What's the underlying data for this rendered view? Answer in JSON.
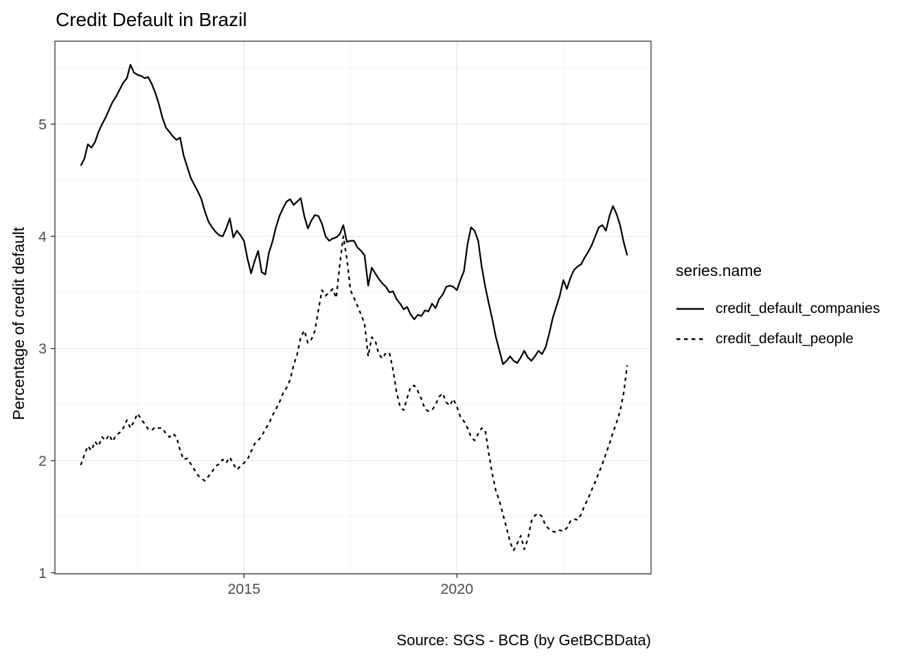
{
  "chart_data": {
    "type": "line",
    "title": "Credit Default in Brazil",
    "xlabel": "",
    "ylabel": "Percentage of credit default",
    "caption": "Source: SGS - BCB (by GetBCBData)",
    "legend_title": "series.name",
    "legend_position": "right",
    "grid": true,
    "x_unit": "decimal_year",
    "x_start": 2011.1667,
    "x_step": 0.0833333,
    "x_range": [
      2010.56,
      2024.56
    ],
    "y_range": [
      0.99,
      5.74
    ],
    "x_major_ticks": [
      {
        "value": 2015,
        "label": "2015"
      },
      {
        "value": 2020,
        "label": "2020"
      }
    ],
    "x_minor_ticks": [
      2012.5,
      2017.5,
      2022.5
    ],
    "y_major_ticks": [
      {
        "value": 1,
        "label": "1"
      },
      {
        "value": 2,
        "label": "2"
      },
      {
        "value": 3,
        "label": "3"
      },
      {
        "value": 4,
        "label": "4"
      },
      {
        "value": 5,
        "label": "5"
      }
    ],
    "y_minor_ticks": [
      1.5,
      2.5,
      3.5,
      4.5,
      5.5
    ],
    "colors": {
      "series_line": "#000000",
      "panel_border": "#333333",
      "tick_mark": "#333333",
      "tick_label": "#4d4d4d",
      "grid_major": "#e3e3e3",
      "grid_minor": "#f1f1f1",
      "background": "#ffffff"
    },
    "series": [
      {
        "name": "credit_default_companies",
        "linetype": "solid",
        "color": "#000000",
        "values": [
          4.63,
          4.69,
          4.82,
          4.79,
          4.84,
          4.93,
          5.0,
          5.06,
          5.13,
          5.2,
          5.25,
          5.31,
          5.37,
          5.41,
          5.53,
          5.46,
          5.44,
          5.43,
          5.41,
          5.42,
          5.36,
          5.28,
          5.18,
          5.06,
          4.97,
          4.93,
          4.89,
          4.86,
          4.88,
          4.72,
          4.62,
          4.52,
          4.46,
          4.4,
          4.33,
          4.22,
          4.13,
          4.08,
          4.04,
          4.01,
          4.0,
          4.07,
          4.16,
          3.99,
          4.05,
          4.01,
          3.96,
          3.8,
          3.67,
          3.78,
          3.87,
          3.68,
          3.66,
          3.85,
          3.95,
          4.08,
          4.18,
          4.25,
          4.31,
          4.33,
          4.28,
          4.31,
          4.34,
          4.18,
          4.07,
          4.14,
          4.19,
          4.18,
          4.11,
          4.0,
          3.96,
          3.98,
          3.99,
          4.02,
          4.1,
          3.95,
          3.96,
          3.96,
          3.9,
          3.87,
          3.83,
          3.56,
          3.72,
          3.67,
          3.62,
          3.58,
          3.55,
          3.5,
          3.51,
          3.44,
          3.4,
          3.35,
          3.37,
          3.3,
          3.26,
          3.3,
          3.29,
          3.34,
          3.33,
          3.4,
          3.36,
          3.44,
          3.48,
          3.55,
          3.56,
          3.55,
          3.52,
          3.61,
          3.69,
          3.93,
          4.08,
          4.05,
          3.96,
          3.73,
          3.55,
          3.4,
          3.26,
          3.1,
          2.98,
          2.86,
          2.89,
          2.93,
          2.89,
          2.87,
          2.92,
          2.98,
          2.92,
          2.89,
          2.93,
          2.98,
          2.95,
          3.01,
          3.13,
          3.27,
          3.37,
          3.47,
          3.61,
          3.53,
          3.63,
          3.7,
          3.73,
          3.75,
          3.81,
          3.86,
          3.92,
          4.0,
          4.08,
          4.1,
          4.05,
          4.18,
          4.27,
          4.2,
          4.1,
          3.95,
          3.83
        ]
      },
      {
        "name": "credit_default_people",
        "linetype": "dashed",
        "color": "#000000",
        "values": [
          1.96,
          2.05,
          2.13,
          2.09,
          2.17,
          2.13,
          2.21,
          2.18,
          2.23,
          2.17,
          2.23,
          2.25,
          2.29,
          2.36,
          2.29,
          2.35,
          2.42,
          2.37,
          2.33,
          2.28,
          2.27,
          2.3,
          2.29,
          2.29,
          2.24,
          2.21,
          2.24,
          2.21,
          2.09,
          2.01,
          2.02,
          1.97,
          1.92,
          1.87,
          1.84,
          1.82,
          1.86,
          1.9,
          1.95,
          1.97,
          2.01,
          1.98,
          2.03,
          1.97,
          1.92,
          1.95,
          1.98,
          2.01,
          2.08,
          2.15,
          2.18,
          2.22,
          2.28,
          2.33,
          2.4,
          2.46,
          2.52,
          2.6,
          2.65,
          2.72,
          2.85,
          2.95,
          3.1,
          3.16,
          3.05,
          3.08,
          3.16,
          3.35,
          3.52,
          3.47,
          3.5,
          3.53,
          3.45,
          3.75,
          4.0,
          3.8,
          3.52,
          3.45,
          3.38,
          3.3,
          3.22,
          2.93,
          3.1,
          3.07,
          2.95,
          2.91,
          2.96,
          2.96,
          2.81,
          2.61,
          2.48,
          2.45,
          2.56,
          2.66,
          2.67,
          2.62,
          2.55,
          2.46,
          2.44,
          2.45,
          2.5,
          2.57,
          2.6,
          2.52,
          2.49,
          2.55,
          2.48,
          2.39,
          2.35,
          2.29,
          2.21,
          2.18,
          2.24,
          2.29,
          2.27,
          2.06,
          1.88,
          1.73,
          1.64,
          1.52,
          1.4,
          1.27,
          1.2,
          1.26,
          1.33,
          1.21,
          1.3,
          1.46,
          1.51,
          1.53,
          1.5,
          1.42,
          1.39,
          1.37,
          1.36,
          1.38,
          1.37,
          1.4,
          1.46,
          1.48,
          1.47,
          1.52,
          1.6,
          1.66,
          1.74,
          1.81,
          1.89,
          1.97,
          2.06,
          2.15,
          2.25,
          2.34,
          2.44,
          2.6,
          2.85
        ]
      }
    ]
  }
}
